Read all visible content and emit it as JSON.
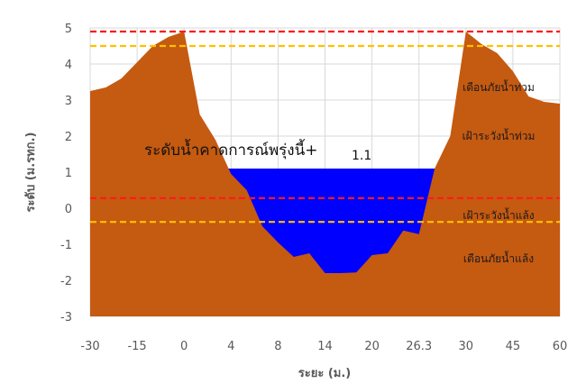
{
  "chart_data": {
    "type": "area",
    "title": "",
    "xlabel": "ระยะ (ม.)",
    "ylabel": "ระดับ (ม.รทก.)",
    "ylim": [
      -3,
      5
    ],
    "yticks": [
      "-3",
      "-2",
      "-1",
      "0",
      "1",
      "2",
      "3",
      "4",
      "5"
    ],
    "categories": [
      "-30",
      "-15",
      "0",
      "4",
      "8",
      "14",
      "20",
      "26.3",
      "30",
      "45",
      "60"
    ],
    "ground_profile": [
      3.25,
      3.35,
      3.6,
      4.05,
      4.5,
      4.75,
      4.9,
      2.6,
      1.9,
      0.95,
      0.5,
      -0.5,
      -0.95,
      -1.35,
      -1.25,
      -1.8,
      -1.8,
      -1.78,
      -1.3,
      -1.25,
      -0.62,
      -0.72,
      1.1,
      2.0,
      4.9,
      4.55,
      4.3,
      3.8,
      3.1,
      2.95,
      2.9
    ],
    "forecast_level": 1.1,
    "forecast_label": "ระดับน้ำคาดการณ์พรุ่งนี้+",
    "forecast_value": "1.1",
    "thresholds": [
      {
        "name": "เตือนภัยน้ำท่วม",
        "value": 4.9,
        "color": "#ff1a1a"
      },
      {
        "name": "เฝ้าระวังน้ำท่วม",
        "value": 4.5,
        "color": "#ffc000"
      },
      {
        "name": "เฝ้าระวังน้ำแล้ง",
        "value": 0.28,
        "color": "#ff1a1a"
      },
      {
        "name": "เตือนภัยน้ำแล้ง",
        "value": -0.38,
        "color": "#ffc000"
      }
    ],
    "zone_labels": [
      "เตือนภัยน้ำท่วม",
      "เฝ้าระวังน้ำท่วม",
      "เฝ้าระวังน้ำแล้ง",
      "เตือนภัยน้ำแล้ง"
    ],
    "colors": {
      "ground": "#c55a11",
      "water": "#0000ff",
      "grid": "#d9d9d9"
    },
    "grid": true,
    "legend": "none"
  }
}
